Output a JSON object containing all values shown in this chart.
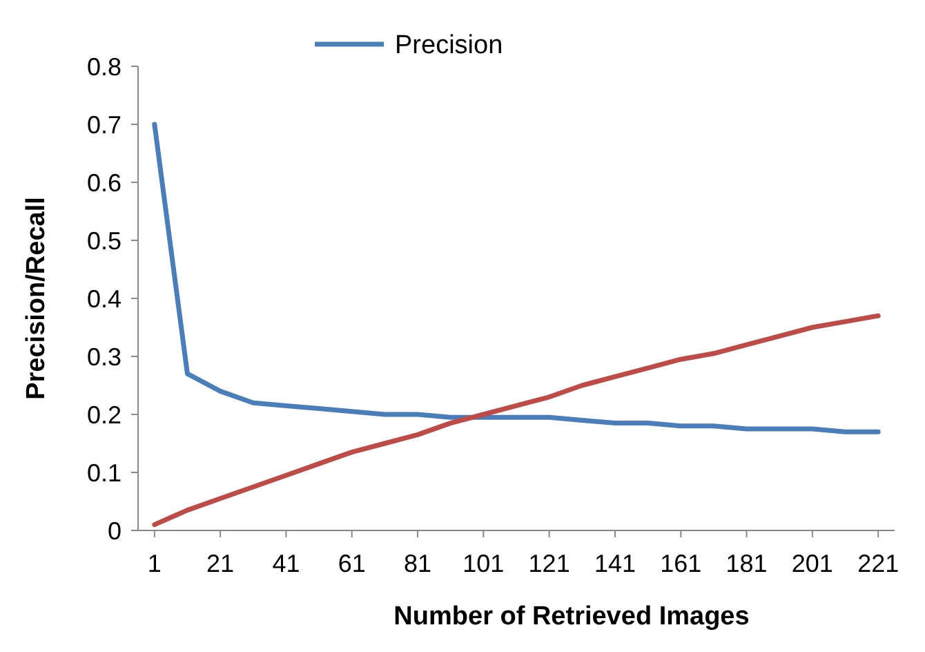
{
  "chart_data": {
    "type": "line",
    "xlabel": "Number of Retrieved Images",
    "ylabel": "Precision/Recall",
    "x": [
      1,
      11,
      21,
      31,
      41,
      51,
      61,
      71,
      81,
      91,
      101,
      111,
      121,
      131,
      141,
      151,
      161,
      171,
      181,
      191,
      201,
      211,
      221
    ],
    "xlim": [
      -4,
      226
    ],
    "xticks": [
      1,
      21,
      41,
      61,
      81,
      101,
      121,
      141,
      161,
      181,
      201,
      221
    ],
    "series": [
      {
        "name": "Precision",
        "color": "#4a7ebb",
        "values": [
          0.7,
          0.27,
          0.24,
          0.22,
          0.215,
          0.21,
          0.205,
          0.2,
          0.2,
          0.195,
          0.195,
          0.195,
          0.195,
          0.19,
          0.185,
          0.185,
          0.18,
          0.18,
          0.175,
          0.175,
          0.175,
          0.17,
          0.17
        ]
      },
      {
        "color": "#be4b48",
        "values": [
          0.01,
          0.035,
          0.055,
          0.075,
          0.095,
          0.115,
          0.135,
          0.15,
          0.165,
          0.185,
          0.2,
          0.215,
          0.23,
          0.25,
          0.265,
          0.28,
          0.295,
          0.305,
          0.32,
          0.335,
          0.35,
          0.36,
          0.37
        ]
      }
    ],
    "ylim": [
      0,
      0.8
    ],
    "yticks": [
      {
        "value": 0,
        "label": "0"
      },
      {
        "value": 0.1,
        "label": "0.1"
      },
      {
        "value": 0.2,
        "label": "0.2"
      },
      {
        "value": 0.3,
        "label": "0.3"
      },
      {
        "value": 0.4,
        "label": "0.4"
      },
      {
        "value": 0.5,
        "label": "0.5"
      },
      {
        "value": 0.6,
        "label": "0.6"
      },
      {
        "value": 0.7,
        "label": "0.7"
      },
      {
        "value": 0.8,
        "label": "0.8"
      }
    ],
    "grid": false,
    "legend": "top",
    "marker": "none",
    "line_style": "solid"
  }
}
